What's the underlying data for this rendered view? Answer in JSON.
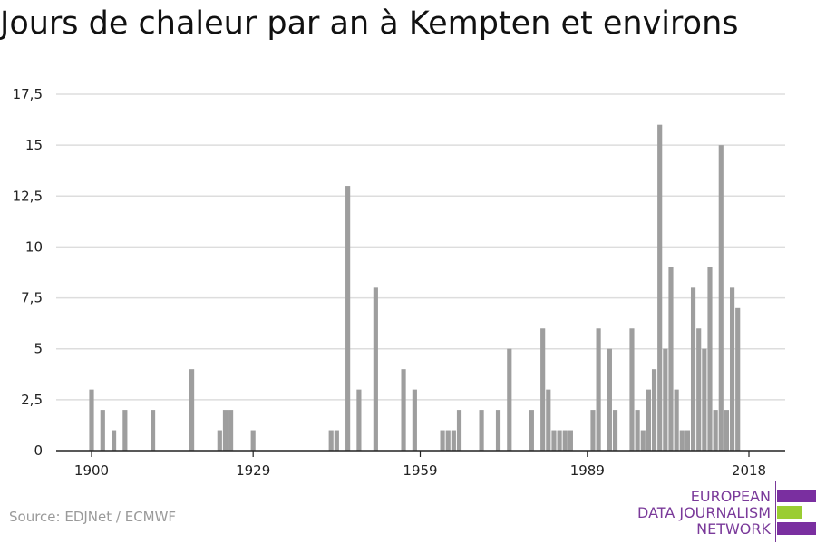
{
  "colors": {
    "bar": "#9e9e9e",
    "grid": "#dddddd",
    "axis": "#222222",
    "text": "#222222",
    "logo_purple": "#7a2fa0",
    "logo_green": "#9acd32"
  },
  "chart_data": {
    "type": "bar",
    "title": "Jours de chaleur par an à Kempten et environs",
    "xlabel": "",
    "ylabel": "",
    "ylim": [
      0,
      17.5
    ],
    "y_ticks": [
      "0",
      "2,5",
      "5",
      "7,5",
      "10",
      "12,5",
      "15",
      "17,5"
    ],
    "x_tick_labels": [
      "1900",
      "1929",
      "1959",
      "1989",
      "2018"
    ],
    "grid": true,
    "legend": "none",
    "x": [
      1900,
      1902,
      1904,
      1906,
      1911,
      1918,
      1923,
      1924,
      1925,
      1929,
      1943,
      1944,
      1946,
      1948,
      1951,
      1956,
      1958,
      1963,
      1964,
      1965,
      1966,
      1970,
      1973,
      1975,
      1979,
      1981,
      1982,
      1983,
      1984,
      1985,
      1986,
      1990,
      1991,
      1993,
      1994,
      1997,
      1998,
      1999,
      2000,
      2001,
      2002,
      2003,
      2004,
      2005,
      2006,
      2007,
      2008,
      2009,
      2010,
      2011,
      2012,
      2013,
      2014,
      2015,
      2016,
      2017
    ],
    "values": [
      3,
      2,
      1,
      2,
      2,
      4,
      1,
      2,
      2,
      1,
      1,
      1,
      13,
      3,
      8,
      4,
      3,
      1,
      1,
      1,
      2,
      2,
      2,
      5,
      2,
      6,
      3,
      1,
      1,
      1,
      1,
      2,
      6,
      5,
      2,
      6,
      2,
      1,
      3,
      4,
      16,
      5,
      9,
      3,
      1,
      1,
      8,
      6,
      5,
      9,
      2,
      15,
      2,
      8,
      7,
      0
    ]
  },
  "source": "Source: EDJNet / ECMWF",
  "logo": {
    "line1": "EUROPEAN",
    "line2": "DATA JOURNALISM",
    "line3": "NETWORK"
  }
}
